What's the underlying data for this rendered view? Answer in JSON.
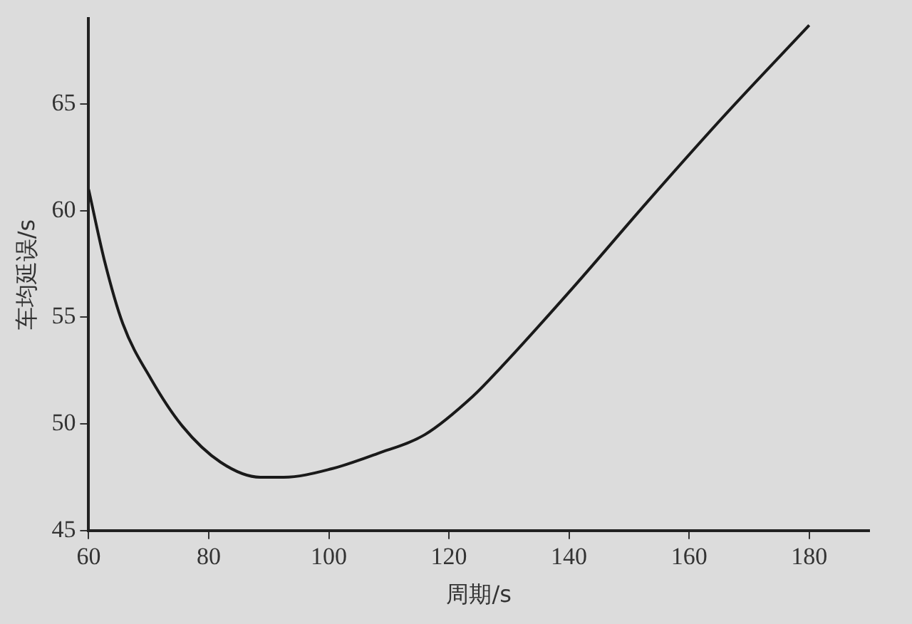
{
  "chart_data": {
    "type": "line",
    "xlabel": "周期/s",
    "ylabel": "车均延误/s",
    "xlim": [
      60,
      190
    ],
    "xticks": [
      60,
      80,
      100,
      120,
      140,
      160,
      180
    ],
    "ylim": [
      45,
      69
    ],
    "yticks": [
      45,
      50,
      55,
      60,
      65
    ],
    "grid": false,
    "legend": false,
    "marker": "none",
    "line_style": "solid",
    "series": [
      {
        "color": "#1a1a1a",
        "x": [
          60,
          62.6,
          65.7,
          70.4,
          75.6,
          82,
          88.6,
          92.5,
          100.5,
          108,
          116,
          124,
          128.5,
          141,
          153,
          166,
          180
        ],
        "values": [
          61,
          57.7,
          54.7,
          52.1,
          49.9,
          48.2,
          47.5,
          47.5,
          47.9,
          48.6,
          49.5,
          51.3,
          52.6,
          56.5,
          60.4,
          64.5,
          68.7
        ]
      }
    ]
  }
}
